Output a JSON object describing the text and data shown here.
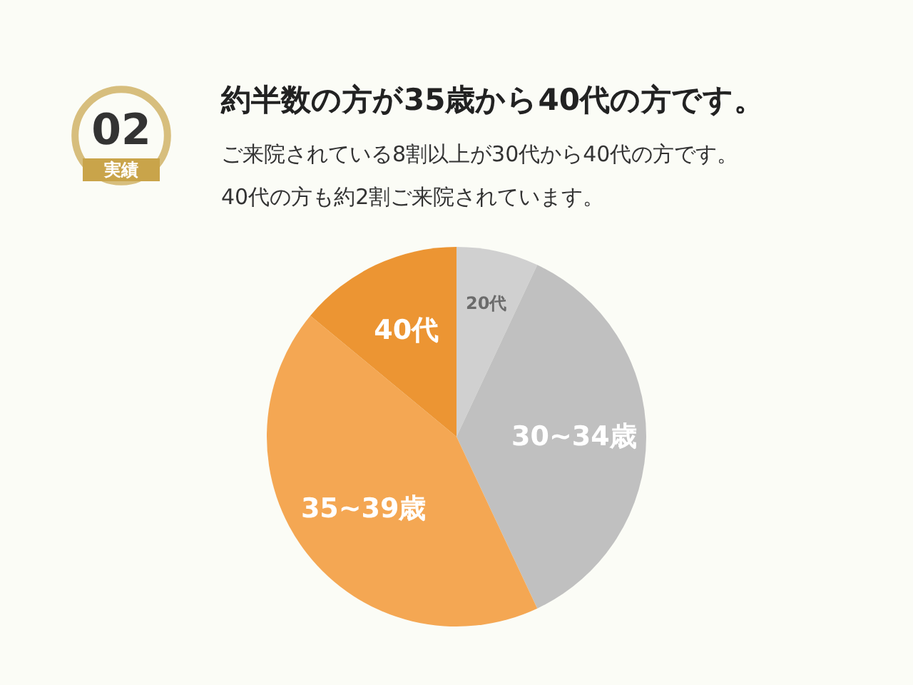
{
  "chart_data": {
    "type": "pie",
    "title": "約半数の方が35歳から40代の方です。",
    "categories": [
      "20代",
      "30~34歳",
      "35~39歳",
      "40代"
    ],
    "values": [
      7,
      36,
      43,
      14
    ],
    "colors": [
      "#d0d0d0",
      "#c0c0c0",
      "#f4a753",
      "#ec9533"
    ],
    "annotations": [
      "02",
      "実績",
      "ご来院されている8割以上が30代から40代の方です。",
      "40代の方も約2割ご来院されています。"
    ]
  }
}
